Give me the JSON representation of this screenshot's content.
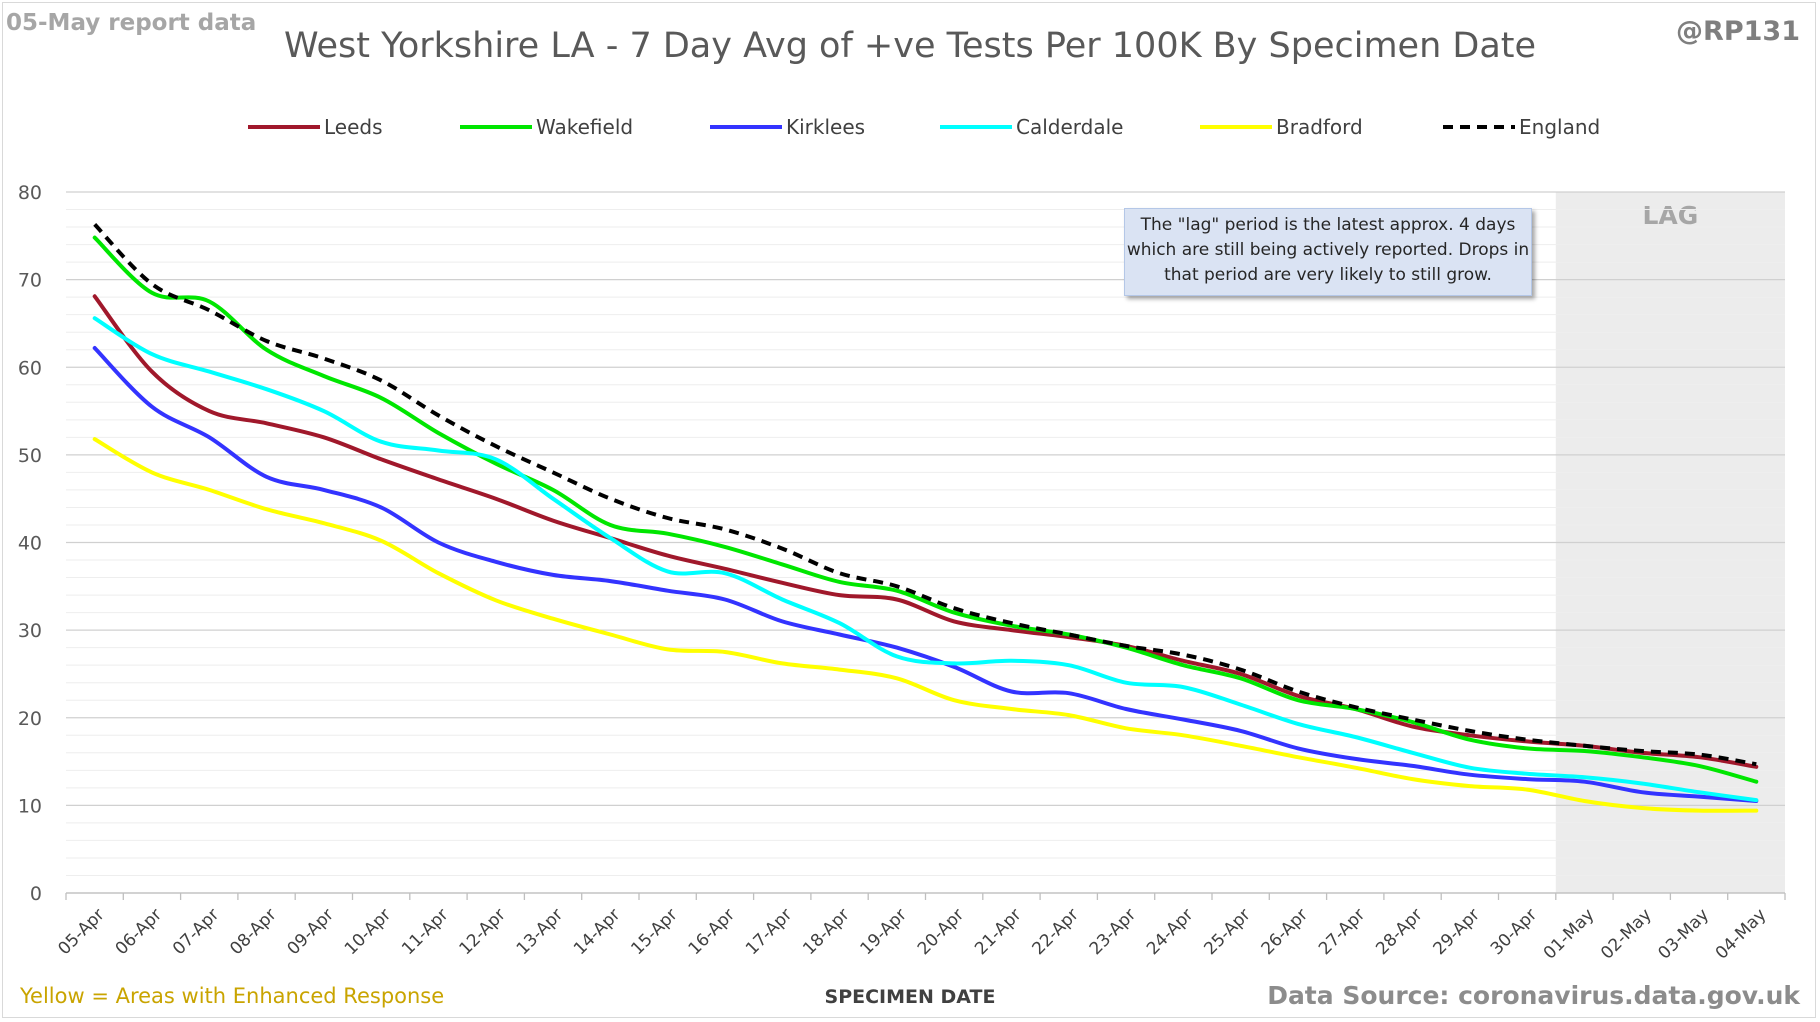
{
  "header": {
    "report_date": "05-May report data",
    "title": "West Yorkshire LA - 7 Day Avg of +ve Tests Per 100K By Specimen Date",
    "handle": "@RP131"
  },
  "footer": {
    "note": "Yellow = Areas with Enhanced Response",
    "source": "Data Source: coronavirus.data.gov.uk"
  },
  "annotation": {
    "lag_text": "The \"lag\" period is the latest approx. 4 days which are still being actively reported. Drops in that period are very likely to still grow.",
    "lag_label": "LAG"
  },
  "colors": {
    "Leeds": "#a0182b",
    "Wakefield": "#00e600",
    "Kirklees": "#3333ff",
    "Calderdale": "#00ffff",
    "Bradford": "#ffff00",
    "England": "#000000",
    "lag_shade": "#ececec",
    "grid": "#d9d9d9"
  },
  "chart_data": {
    "type": "line",
    "title": "West Yorkshire LA - 7 Day Avg of +ve Tests Per 100K By Specimen Date",
    "xlabel": "SPECIMEN DATE",
    "ylabel": "",
    "ylim": [
      0,
      80
    ],
    "yticks": [
      0,
      10,
      20,
      30,
      40,
      50,
      60,
      70,
      80
    ],
    "grid": true,
    "legend_position": "top",
    "lag_start": "01-May",
    "categories": [
      "05-Apr",
      "06-Apr",
      "07-Apr",
      "08-Apr",
      "09-Apr",
      "10-Apr",
      "11-Apr",
      "12-Apr",
      "13-Apr",
      "14-Apr",
      "15-Apr",
      "16-Apr",
      "17-Apr",
      "18-Apr",
      "19-Apr",
      "20-Apr",
      "21-Apr",
      "22-Apr",
      "23-Apr",
      "24-Apr",
      "25-Apr",
      "26-Apr",
      "27-Apr",
      "28-Apr",
      "29-Apr",
      "30-Apr",
      "01-May",
      "02-May",
      "03-May",
      "04-May"
    ],
    "series": [
      {
        "name": "Leeds",
        "dashed": false,
        "values": [
          68.1,
          59.5,
          55.0,
          53.6,
          52.0,
          49.5,
          47.2,
          45.0,
          42.5,
          40.5,
          38.5,
          37.0,
          35.4,
          34.0,
          33.5,
          31.0,
          30.0,
          29.2,
          28.2,
          26.5,
          25.0,
          22.5,
          21.0,
          19.0,
          18.0,
          17.3,
          16.8,
          16.0,
          15.5,
          14.4
        ]
      },
      {
        "name": "Wakefield",
        "dashed": false,
        "values": [
          74.8,
          68.5,
          67.5,
          62.0,
          59.0,
          56.5,
          52.5,
          49.0,
          46.0,
          42.0,
          41.0,
          39.5,
          37.5,
          35.5,
          34.5,
          32.0,
          30.5,
          29.5,
          28.0,
          26.0,
          24.5,
          22.0,
          21.0,
          19.5,
          17.5,
          16.5,
          16.2,
          15.5,
          14.5,
          12.7
        ]
      },
      {
        "name": "Kirklees",
        "dashed": false,
        "values": [
          62.2,
          55.5,
          52.0,
          47.5,
          46.0,
          44.0,
          40.0,
          37.8,
          36.3,
          35.6,
          34.5,
          33.5,
          31.0,
          29.5,
          28.0,
          25.8,
          23.0,
          22.8,
          21.0,
          19.8,
          18.5,
          16.5,
          15.3,
          14.5,
          13.5,
          13.0,
          12.7,
          11.5,
          11.0,
          10.5
        ]
      },
      {
        "name": "Calderdale",
        "dashed": false,
        "values": [
          65.6,
          61.5,
          59.5,
          57.5,
          55.0,
          51.5,
          50.5,
          49.5,
          45.0,
          40.5,
          36.7,
          36.5,
          33.5,
          30.8,
          27.0,
          26.2,
          26.5,
          26.0,
          24.0,
          23.5,
          21.5,
          19.3,
          17.8,
          16.0,
          14.3,
          13.6,
          13.2,
          12.5,
          11.5,
          10.6
        ]
      },
      {
        "name": "Bradford",
        "dashed": false,
        "values": [
          51.8,
          48.0,
          46.0,
          43.8,
          42.2,
          40.2,
          36.5,
          33.4,
          31.3,
          29.5,
          27.8,
          27.5,
          26.2,
          25.5,
          24.5,
          22.0,
          21.0,
          20.3,
          18.8,
          18.0,
          16.8,
          15.5,
          14.3,
          13.0,
          12.2,
          11.8,
          10.5,
          9.7,
          9.4,
          9.4
        ]
      },
      {
        "name": "England",
        "dashed": true,
        "values": [
          76.3,
          69.5,
          66.5,
          63.0,
          61.0,
          58.5,
          54.5,
          51.0,
          48.0,
          45.0,
          42.8,
          41.5,
          39.3,
          36.5,
          35.0,
          32.5,
          30.8,
          29.5,
          28.2,
          27.2,
          25.5,
          23.0,
          21.2,
          19.8,
          18.5,
          17.5,
          16.8,
          16.2,
          15.8,
          14.7
        ]
      }
    ]
  }
}
